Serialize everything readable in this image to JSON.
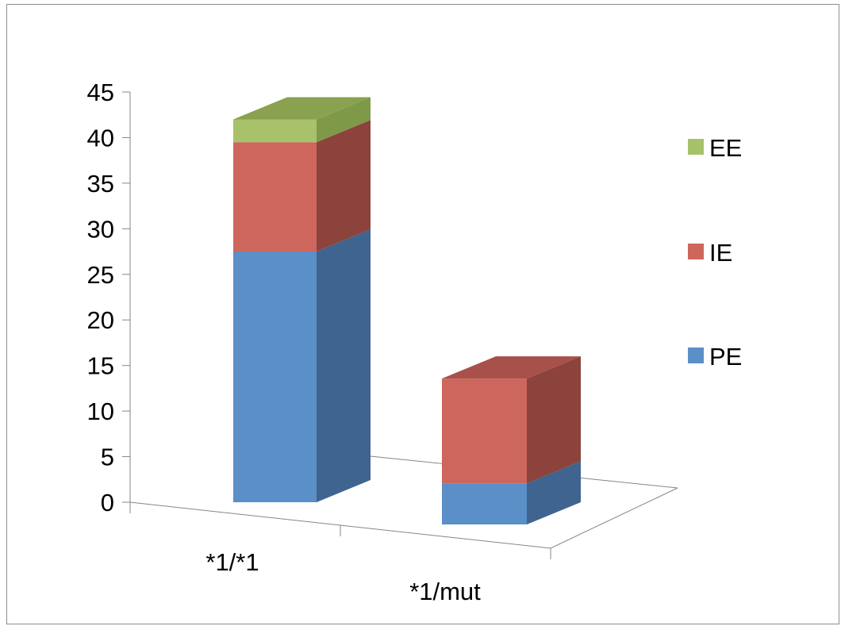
{
  "chart_data": {
    "type": "bar",
    "stacked": true,
    "three_d": true,
    "categories": [
      "*1/*1",
      "*1/mut"
    ],
    "series": [
      {
        "name": "PE",
        "values": [
          27.5,
          4.5
        ],
        "color": "#5b8fc7",
        "side_color": "#3f648f"
      },
      {
        "name": "IE",
        "values": [
          12.0,
          11.5
        ],
        "color": "#cd665c",
        "side_color": "#8c433c"
      },
      {
        "name": "EE",
        "values": [
          2.5,
          0
        ],
        "color": "#a7c26a",
        "side_color": "#7e9a48"
      }
    ],
    "top_colors": {
      "EE": "#8aa24f",
      "IE": "#a8504a",
      "PE": "#4d7aaa"
    },
    "yticks": [
      0,
      5,
      10,
      15,
      20,
      25,
      30,
      35,
      40,
      45
    ],
    "ylim": [
      0,
      45
    ],
    "legend_position": "right",
    "legend_order": [
      "EE",
      "IE",
      "PE"
    ],
    "grid": false,
    "title": "",
    "xlabel": "",
    "ylabel": ""
  }
}
